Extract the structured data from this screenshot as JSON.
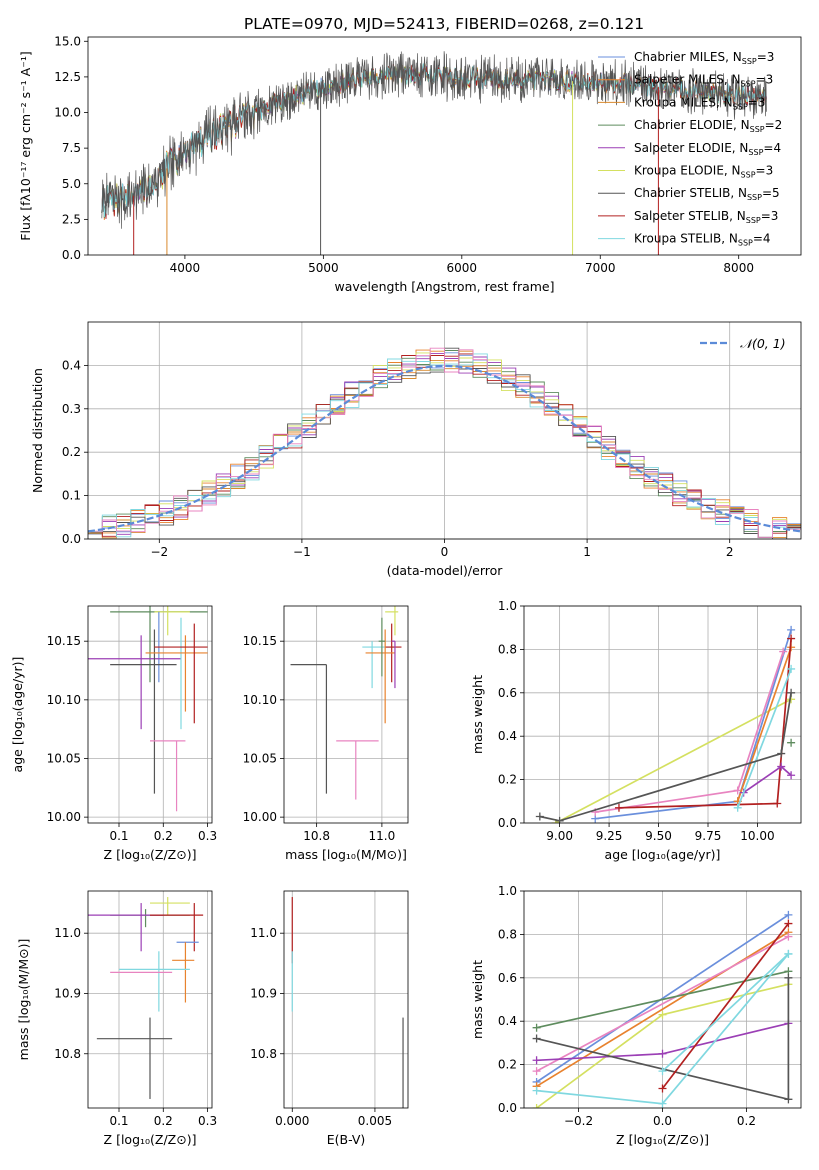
{
  "title": "PLATE=0970, MJD=52413, FIBERID=0268, z=0.121",
  "colors": {
    "c_MILES": "#6a8fdc",
    "s_MILES": "#e8822e",
    "k_MILES": "#d98a2e",
    "c_ELODIE": "#5e8c5e",
    "s_ELODIE": "#9b3fb5",
    "k_ELODIE": "#d4e060",
    "c_STELIB": "#555555",
    "s_STELIB": "#b22020",
    "k_STELIB": "#80d8e0",
    "pink": "#e884c0",
    "gaussian": "#5b8bd8"
  },
  "chart_data": [
    {
      "type": "line",
      "id": "spectrum",
      "title": "PLATE=0970, MJD=52413, FIBERID=0268, z=0.121",
      "xlabel": "wavelength [Angstrom, rest frame]",
      "ylabel": "Flux [fλ10⁻¹⁷ erg cm⁻² s⁻¹ A⁻¹]",
      "xlim": [
        3300,
        8450
      ],
      "ylim": [
        0,
        15.3
      ],
      "xticks": [
        4000,
        5000,
        6000,
        7000,
        8000
      ],
      "xticklabels": [
        "4000",
        "5000",
        "6000",
        "7000",
        "8000"
      ],
      "yticks": [
        0,
        2.5,
        5,
        7.5,
        10,
        12.5,
        15
      ],
      "yticklabels": [
        "0.0",
        "2.5",
        "5.0",
        "7.5",
        "10.0",
        "12.5",
        "15.0"
      ],
      "legend_position": "top-right",
      "series": [
        {
          "name": "Chabrier MILES, N_SSP=3",
          "label_main": "Chabrier MILES, N",
          "label_sub": "SSP",
          "label_tail": "=3",
          "color": "#6a8fdc"
        },
        {
          "name": "Salpeter MILES, N_SSP=3",
          "label_main": "Salpeter MILES, N",
          "label_sub": "SSP",
          "label_tail": "=3",
          "color": "#e8822e"
        },
        {
          "name": "Kroupa MILES, N_SSP=3",
          "label_main": "Kroupa MILES, N",
          "label_sub": "SSP",
          "label_tail": "=3",
          "color": "#d98a2e"
        },
        {
          "name": "Chabrier ELODIE, N_SSP=2",
          "label_main": "Chabrier ELODIE, N",
          "label_sub": "SSP",
          "label_tail": "=2",
          "color": "#5e8c5e"
        },
        {
          "name": "Salpeter ELODIE, N_SSP=4",
          "label_main": "Salpeter ELODIE, N",
          "label_sub": "SSP",
          "label_tail": "=4",
          "color": "#9b3fb5"
        },
        {
          "name": "Kroupa ELODIE, N_SSP=3",
          "label_main": "Kroupa ELODIE, N",
          "label_sub": "SSP",
          "label_tail": "=3",
          "color": "#d4e060"
        },
        {
          "name": "Chabrier STELIB, N_SSP=5",
          "label_main": "Chabrier STELIB, N",
          "label_sub": "SSP",
          "label_tail": "=5",
          "color": "#555555"
        },
        {
          "name": "Salpeter STELIB, N_SSP=3",
          "label_main": "Salpeter STELIB, N",
          "label_sub": "SSP",
          "label_tail": "=3",
          "color": "#b22020"
        },
        {
          "name": "Kroupa STELIB, N_SSP=4",
          "label_main": "Kroupa STELIB, N",
          "label_sub": "SSP",
          "label_tail": "=4",
          "color": "#80d8e0"
        }
      ],
      "continuum": {
        "x": [
          3400,
          3500,
          3600,
          3700,
          3800,
          3900,
          4000,
          4100,
          4200,
          4300,
          4400,
          4500,
          4600,
          4700,
          4800,
          4900,
          5000,
          5100,
          5200,
          5300,
          5400,
          5500,
          5600,
          5700,
          5800,
          5900,
          6000,
          6200,
          6400,
          6600,
          6800,
          7000,
          7200,
          7400,
          7600,
          7800,
          8000,
          8200
        ],
        "y": [
          3.6,
          3.8,
          4.0,
          4.5,
          5.3,
          6.4,
          7.3,
          8.0,
          8.5,
          9.0,
          9.6,
          10.0,
          10.4,
          10.8,
          11.2,
          11.5,
          11.8,
          12.0,
          12.2,
          12.4,
          12.6,
          12.7,
          12.7,
          12.7,
          12.6,
          12.5,
          12.5,
          12.4,
          12.3,
          12.3,
          12.2,
          12.2,
          12.0,
          11.8,
          11.6,
          11.4,
          11.2,
          11.0
        ]
      }
    },
    {
      "type": "bar",
      "id": "residuals",
      "xlabel": "(data-model)/error",
      "ylabel": "Normed distribution",
      "xlim": [
        -2.5,
        2.5
      ],
      "ylim": [
        0,
        0.5
      ],
      "xticks": [
        -2,
        -1,
        0,
        1,
        2
      ],
      "xticklabels": [
        "−2",
        "−1",
        "0",
        "1",
        "2"
      ],
      "yticks": [
        0,
        0.1,
        0.2,
        0.3,
        0.4
      ],
      "yticklabels": [
        "0.0",
        "0.1",
        "0.2",
        "0.3",
        "0.4"
      ],
      "bin_width": 0.1,
      "legend": {
        "label": "𝒩(0, 1)",
        "position": "top-right"
      },
      "gaussian": {
        "mu": 0,
        "sigma": 1,
        "color": "#5b8bd8"
      }
    },
    {
      "type": "scatter",
      "id": "age_vs_Z",
      "xlabel": "Z [log₁₀(Z/Z⊙)]",
      "ylabel": "age  [log₁₀(age/yr)]",
      "xlim": [
        0.03,
        0.31
      ],
      "ylim": [
        9.995,
        10.18
      ],
      "xticks": [
        0.1,
        0.2,
        0.3
      ],
      "xticklabels": [
        "0.1",
        "0.2",
        "0.3"
      ],
      "yticks": [
        10.0,
        10.05,
        10.1,
        10.15
      ],
      "yticklabels": [
        "10.00",
        "10.05",
        "10.10",
        "10.15"
      ],
      "points": [
        {
          "color": "#5e8c5e",
          "x": 0.17,
          "y": 10.175,
          "xerr": [
            0.09,
            0.13
          ],
          "yerr": [
            0.06,
            0.005
          ]
        },
        {
          "color": "#d4e060",
          "x": 0.21,
          "y": 10.175,
          "xerr": [
            0.03,
            0.05
          ],
          "yerr": [
            0.02,
            0.005
          ]
        },
        {
          "color": "#6a8fdc",
          "x": 0.19,
          "y": 10.165,
          "xerr": [
            0.0,
            0.0
          ],
          "yerr": [
            0.05,
            0.01
          ]
        },
        {
          "color": "#9b3fb5",
          "x": 0.15,
          "y": 10.135,
          "xerr": [
            0.12,
            0.09
          ],
          "yerr": [
            0.06,
            0.02
          ]
        },
        {
          "color": "#555555",
          "x": 0.18,
          "y": 10.13,
          "xerr": [
            0.1,
            0.05
          ],
          "yerr": [
            0.11,
            0.03
          ]
        },
        {
          "color": "#80d8e0",
          "x": 0.24,
          "y": 10.14,
          "xerr": [
            0.0,
            0.0
          ],
          "yerr": [
            0.065,
            0.03
          ]
        },
        {
          "color": "#e8822e",
          "x": 0.25,
          "y": 10.14,
          "xerr": [
            0.09,
            0.05
          ],
          "yerr": [
            0.05,
            0.015
          ]
        },
        {
          "color": "#b22020",
          "x": 0.27,
          "y": 10.145,
          "xerr": [
            0.09,
            0.03
          ],
          "yerr": [
            0.065,
            0.02
          ]
        },
        {
          "color": "#e884c0",
          "x": 0.23,
          "y": 10.065,
          "xerr": [
            0.06,
            0.02
          ],
          "yerr": [
            0.06,
            0.0
          ]
        }
      ]
    },
    {
      "type": "scatter",
      "id": "age_vs_mass",
      "xlabel": "mass [log₁₀(M/M⊙)]",
      "ylabel": "",
      "xlim": [
        10.7,
        11.08
      ],
      "ylim": [
        9.995,
        10.18
      ],
      "xticks": [
        10.8,
        11.0
      ],
      "xticklabels": [
        "10.8",
        "11.0"
      ],
      "yticks": [
        10.0,
        10.05,
        10.1,
        10.15
      ],
      "yticklabels": [
        "10.00",
        "10.05",
        "10.10",
        "10.15"
      ],
      "points": [
        {
          "color": "#d4e060",
          "x": 11.04,
          "y": 10.175,
          "xerr": [
            0.03,
            0.01
          ],
          "yerr": [
            0.02,
            0.005
          ]
        },
        {
          "color": "#80d8e0",
          "x": 10.97,
          "y": 10.145,
          "xerr": [
            0.03,
            0.07
          ],
          "yerr": [
            0.035,
            0.005
          ]
        },
        {
          "color": "#b22020",
          "x": 11.03,
          "y": 10.145,
          "xerr": [
            0.02,
            0.03
          ],
          "yerr": [
            0.03,
            0.02
          ]
        },
        {
          "color": "#e8822e",
          "x": 11.01,
          "y": 10.14,
          "xerr": [
            0.06,
            0.03
          ],
          "yerr": [
            0.06,
            0.02
          ]
        },
        {
          "color": "#5e8c5e",
          "x": 11.0,
          "y": 10.15,
          "xerr": [
            0.01,
            0.01
          ],
          "yerr": [
            0.03,
            0.02
          ]
        },
        {
          "color": "#555555",
          "x": 10.83,
          "y": 10.13,
          "xerr": [
            0.11,
            0.0
          ],
          "yerr": [
            0.11,
            0.0
          ]
        },
        {
          "color": "#e884c0",
          "x": 10.92,
          "y": 10.065,
          "xerr": [
            0.06,
            0.07
          ],
          "yerr": [
            0.05,
            0.0
          ]
        },
        {
          "color": "#9b3fb5",
          "x": 11.04,
          "y": 10.15,
          "xerr": [
            0.01,
            0.0
          ],
          "yerr": [
            0.04,
            0.0
          ]
        }
      ]
    },
    {
      "type": "line",
      "id": "weight_vs_age",
      "xlabel": "age  [log₁₀(age/yr)]",
      "ylabel": "mass weight",
      "xlim": [
        8.82,
        10.22
      ],
      "ylim": [
        0,
        1.0
      ],
      "xticks": [
        9.0,
        9.25,
        9.5,
        9.75,
        10.0
      ],
      "xticklabels": [
        "9.00",
        "9.25",
        "9.50",
        "9.75",
        "10.00"
      ],
      "yticks": [
        0.0,
        0.2,
        0.4,
        0.6,
        0.8,
        1.0
      ],
      "yticklabels": [
        "0.0",
        "0.2",
        "0.4",
        "0.6",
        "0.8",
        "1.0"
      ],
      "series": [
        {
          "color": "#d4e060",
          "x": [
            8.98,
            10.17
          ],
          "y": [
            0.0,
            0.57
          ]
        },
        {
          "color": "#6a8fdc",
          "x": [
            9.18,
            9.9,
            10.17
          ],
          "y": [
            0.02,
            0.1,
            0.89
          ]
        },
        {
          "color": "#e884c0",
          "x": [
            9.18,
            9.9,
            10.13
          ],
          "y": [
            0.05,
            0.15,
            0.79
          ]
        },
        {
          "color": "#e8822e",
          "x": [
            9.9,
            10.17
          ],
          "y": [
            0.1,
            0.81
          ]
        },
        {
          "color": "#b22020",
          "x": [
            9.3,
            10.1,
            10.17
          ],
          "y": [
            0.07,
            0.09,
            0.85
          ]
        },
        {
          "color": "#9b3fb5",
          "x": [
            9.93,
            10.12,
            10.17
          ],
          "y": [
            0.14,
            0.26,
            0.22
          ]
        },
        {
          "color": "#80d8e0",
          "x": [
            9.9,
            10.17
          ],
          "y": [
            0.07,
            0.71
          ]
        },
        {
          "color": "#555555",
          "x": [
            8.9,
            9.0,
            10.12,
            10.17
          ],
          "y": [
            0.03,
            0.01,
            0.32,
            0.6
          ]
        },
        {
          "color": "#5e8c5e",
          "x": [
            10.17
          ],
          "y": [
            0.37
          ]
        }
      ]
    },
    {
      "type": "scatter",
      "id": "mass_vs_Z",
      "xlabel": "Z [log₁₀(Z/Z⊙)]",
      "ylabel": "mass [log₁₀(M/M⊙)]",
      "xlim": [
        0.03,
        0.31
      ],
      "ylim": [
        10.71,
        11.07
      ],
      "xticks": [
        0.1,
        0.2,
        0.3
      ],
      "xticklabels": [
        "0.1",
        "0.2",
        "0.3"
      ],
      "yticks": [
        10.8,
        10.9,
        11.0
      ],
      "yticklabels": [
        "10.8",
        "10.9",
        "11.0"
      ],
      "points": [
        {
          "color": "#d4e060",
          "x": 0.21,
          "y": 11.05,
          "xerr": [
            0.04,
            0.05
          ],
          "yerr": [
            0.02,
            0.01
          ]
        },
        {
          "color": "#5e8c5e",
          "x": 0.16,
          "y": 11.03,
          "xerr": [
            0.08,
            0.1
          ],
          "yerr": [
            0.02,
            0.01
          ]
        },
        {
          "color": "#9b3fb5",
          "x": 0.15,
          "y": 11.03,
          "xerr": [
            0.12,
            0.05
          ],
          "yerr": [
            0.06,
            0.02
          ]
        },
        {
          "color": "#b22020",
          "x": 0.27,
          "y": 11.03,
          "xerr": [
            0.1,
            0.02
          ],
          "yerr": [
            0.06,
            0.02
          ]
        },
        {
          "color": "#6a8fdc",
          "x": 0.26,
          "y": 10.985,
          "xerr": [
            0.03,
            0.02
          ],
          "yerr": [
            0.0,
            0.0
          ]
        },
        {
          "color": "#e8822e",
          "x": 0.25,
          "y": 10.955,
          "xerr": [
            0.03,
            0.02
          ],
          "yerr": [
            0.07,
            0.03
          ]
        },
        {
          "color": "#80d8e0",
          "x": 0.19,
          "y": 10.94,
          "xerr": [
            0.09,
            0.07
          ],
          "yerr": [
            0.07,
            0.03
          ]
        },
        {
          "color": "#e884c0",
          "x": 0.17,
          "y": 10.935,
          "xerr": [
            0.09,
            0.05
          ],
          "yerr": [
            0.0,
            0.0
          ]
        },
        {
          "color": "#555555",
          "x": 0.17,
          "y": 10.825,
          "xerr": [
            0.12,
            0.05
          ],
          "yerr": [
            0.1,
            0.035
          ]
        }
      ]
    },
    {
      "type": "scatter",
      "id": "mass_vs_ebv",
      "xlabel": "E(B-V)",
      "ylabel": "",
      "xlim": [
        -0.0005,
        0.007
      ],
      "ylim": [
        10.71,
        11.07
      ],
      "xticks": [
        0.0,
        0.005
      ],
      "xticklabels": [
        "0.000",
        "0.005"
      ],
      "yticks": [
        10.8,
        10.9,
        11.0
      ],
      "yticklabels": [
        "10.8",
        "10.9",
        "11.0"
      ],
      "points": [
        {
          "color": "#b22020",
          "x": 0.0,
          "y": 11.0,
          "xerr": [
            0,
            0
          ],
          "yerr": [
            0.05,
            0.06
          ]
        },
        {
          "color": "#80d8e0",
          "x": 0.0,
          "y": 10.94,
          "xerr": [
            0,
            0
          ],
          "yerr": [
            0.07,
            0.03
          ]
        },
        {
          "color": "#555555",
          "x": 0.0067,
          "y": 10.8,
          "xerr": [
            0,
            0
          ],
          "yerr": [
            0.1,
            0.06
          ]
        }
      ]
    },
    {
      "type": "line",
      "id": "weight_vs_Z",
      "xlabel": "Z [log₁₀(Z/Z⊙)]",
      "ylabel": "mass weight",
      "xlim": [
        -0.33,
        0.33
      ],
      "ylim": [
        0,
        1.0
      ],
      "xticks": [
        -0.2,
        0.0,
        0.2
      ],
      "xticklabels": [
        "−0.2",
        "0.0",
        "0.2"
      ],
      "yticks": [
        0.0,
        0.2,
        0.4,
        0.6,
        0.8,
        1.0
      ],
      "yticklabels": [
        "0.0",
        "0.2",
        "0.4",
        "0.6",
        "0.8",
        "1.0"
      ],
      "series": [
        {
          "color": "#6a8fdc",
          "x": [
            -0.3,
            0.3
          ],
          "y": [
            0.12,
            0.89
          ]
        },
        {
          "color": "#e8822e",
          "x": [
            -0.3,
            0.3
          ],
          "y": [
            0.1,
            0.81
          ]
        },
        {
          "color": "#e884c0",
          "x": [
            -0.3,
            0.3
          ],
          "y": [
            0.17,
            0.79
          ]
        },
        {
          "color": "#5e8c5e",
          "x": [
            -0.3,
            0.3
          ],
          "y": [
            0.37,
            0.63
          ]
        },
        {
          "color": "#d4e060",
          "x": [
            -0.3,
            0.0,
            0.3
          ],
          "y": [
            0.0,
            0.43,
            0.57
          ]
        },
        {
          "color": "#9b3fb5",
          "x": [
            -0.3,
            0.0,
            0.3
          ],
          "y": [
            0.22,
            0.25,
            0.39
          ]
        },
        {
          "color": "#555555",
          "x": [
            -0.3,
            0.3,
            0.3
          ],
          "y": [
            0.32,
            0.04,
            0.6
          ]
        },
        {
          "color": "#b22020",
          "x": [
            0.0,
            0.3
          ],
          "y": [
            0.09,
            0.85
          ]
        },
        {
          "color": "#80d8e0",
          "x": [
            -0.3,
            0.0,
            0.3
          ],
          "y": [
            0.08,
            0.02,
            0.71
          ]
        },
        {
          "color": "#80d8e0",
          "x": [
            0.0,
            0.3
          ],
          "y": [
            0.17,
            0.71
          ]
        }
      ]
    }
  ]
}
